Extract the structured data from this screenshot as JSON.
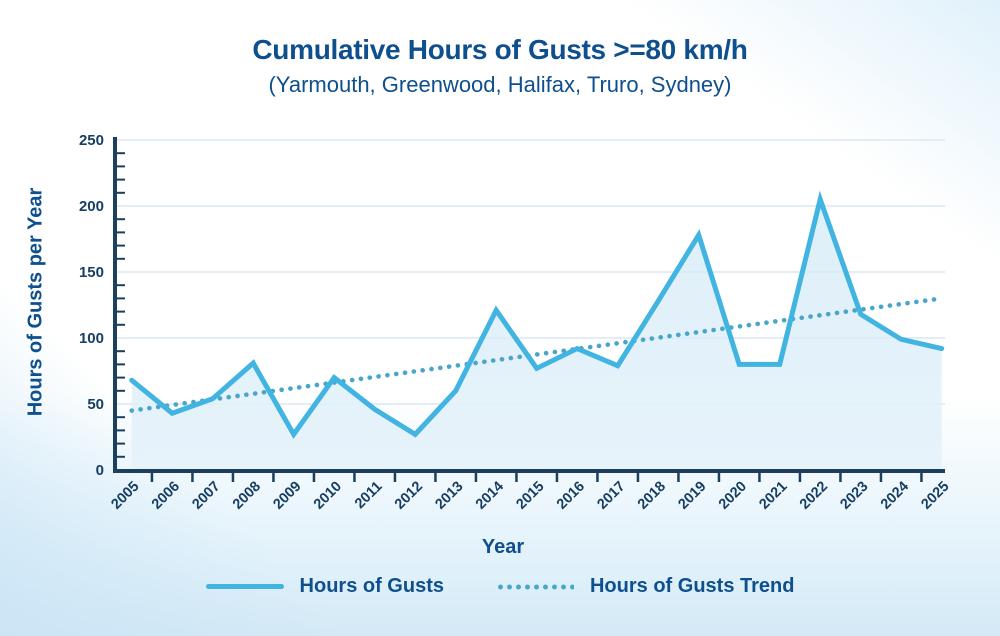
{
  "page": {
    "title": "Cumulative Hours of Gusts >=80 km/h",
    "subtitle": "(Yarmouth, Greenwood, Halifax, Truro, Sydney)"
  },
  "chart_data": {
    "type": "line",
    "title": "Cumulative Hours of Gusts >=80 km/h",
    "subtitle": "(Yarmouth, Greenwood, Halifax, Truro, Sydney)",
    "x": [
      2005,
      2006,
      2007,
      2008,
      2009,
      2010,
      2011,
      2012,
      2013,
      2014,
      2015,
      2016,
      2017,
      2018,
      2019,
      2020,
      2021,
      2022,
      2023,
      2024,
      2025
    ],
    "series": [
      {
        "name": "Hours of Gusts",
        "style": "solid",
        "values": [
          68,
          43,
          54,
          81,
          27,
          70,
          46,
          27,
          60,
          121,
          77,
          92,
          79,
          128,
          178,
          80,
          80,
          205,
          118,
          99,
          92
        ]
      },
      {
        "name": "Hours of Gusts Trend",
        "style": "dotted",
        "trend": {
          "start_year": 2005,
          "start_value": 45,
          "end_year": 2025,
          "end_value": 130
        }
      }
    ],
    "xlabel": "Year",
    "ylabel": "Hours of Gusts per Year",
    "ylim": [
      0,
      250
    ],
    "ytick_step": 50,
    "y_minor_tick_step": 10,
    "grid": true,
    "area_fill": true,
    "legend_position": "bottom"
  },
  "legend": {
    "items": [
      {
        "label": "Hours of Gusts",
        "swatch": "solid-line"
      },
      {
        "label": "Hours of Gusts Trend",
        "swatch": "dotted-line"
      }
    ]
  },
  "colors": {
    "line": "#41b4e2",
    "trend": "#4aa6c9",
    "fill_top": "#cde7f5",
    "fill_bottom": "#e7f3fb",
    "axis": "#1c3e5f",
    "grid": "#e2edf4",
    "title_text": "#0e4f8d",
    "tick_text": "#173e63",
    "background_bottom": "#d4e9f6"
  }
}
